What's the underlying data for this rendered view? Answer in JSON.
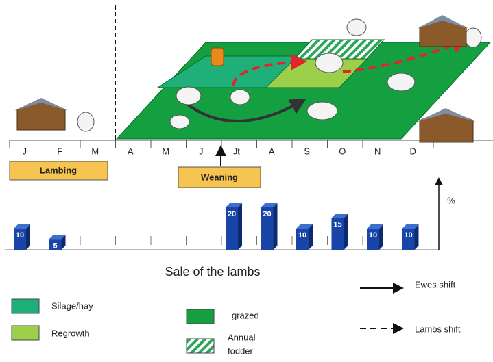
{
  "months": [
    "J",
    "F",
    "M",
    "A",
    "M",
    "J",
    "Jt",
    "A",
    "S",
    "O",
    "N",
    "D"
  ],
  "phases": {
    "lambing": "Lambing",
    "weaning": "Weaning"
  },
  "sales": {
    "title": "Sale of the lambs",
    "unit": "%",
    "values": [
      10,
      5,
      null,
      null,
      null,
      null,
      20,
      20,
      10,
      15,
      10,
      10
    ]
  },
  "legend": {
    "silage": "Silage/hay",
    "regrowth": "Regrowth",
    "grazed": "grazed",
    "annual": [
      "Annual",
      "fodder"
    ],
    "ewes": "Ewes shift",
    "lambs": "Lambs shift"
  }
}
